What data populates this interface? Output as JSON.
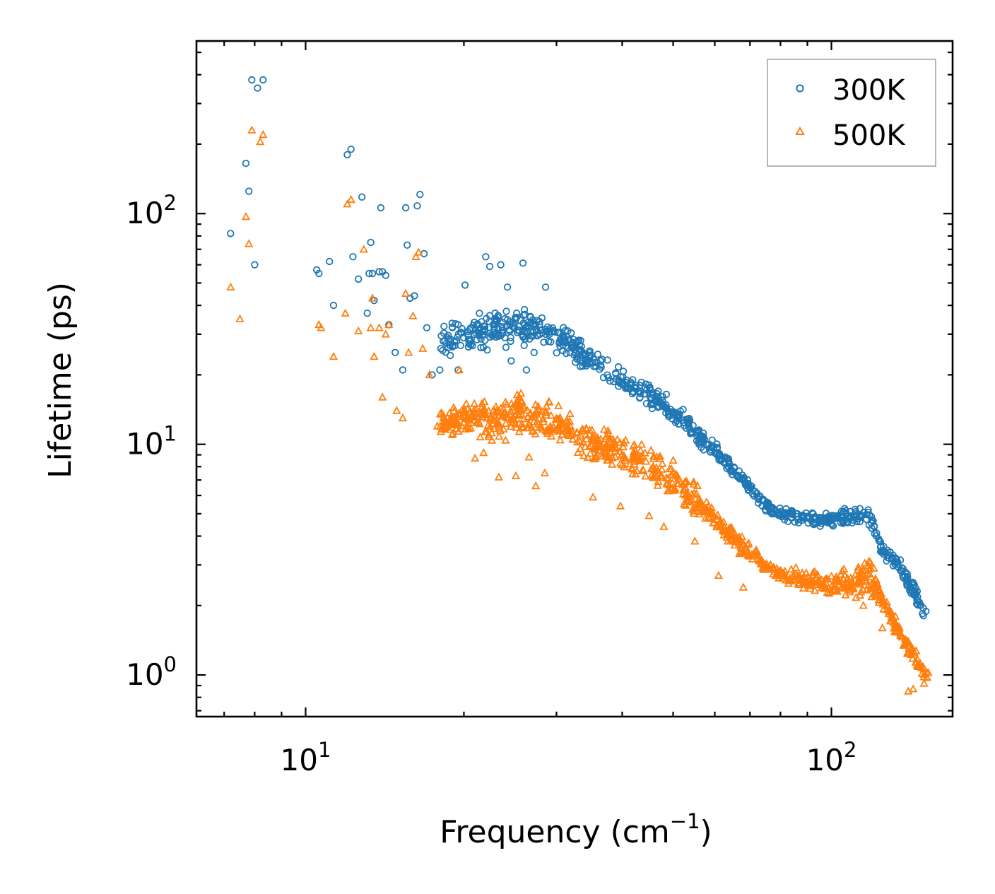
{
  "chart_data": {
    "type": "scatter",
    "xscale": "log",
    "yscale": "log",
    "xlabel": "Frequency (cm",
    "xlabel_sup": "−1",
    "xlabel_close": ")",
    "ylabel": "Lifetime (ps)",
    "xlim": [
      6.2,
      170
    ],
    "ylim": [
      0.66,
      560
    ],
    "x_ticks": [
      {
        "base": "10",
        "exp": "1",
        "value": 10
      },
      {
        "base": "10",
        "exp": "2",
        "value": 100
      }
    ],
    "y_ticks": [
      {
        "base": "10",
        "exp": "0",
        "value": 1
      },
      {
        "base": "10",
        "exp": "1",
        "value": 10
      },
      {
        "base": "10",
        "exp": "2",
        "value": 100
      }
    ],
    "legend_position": "top-right",
    "series": [
      {
        "name": "300K",
        "marker": "circle",
        "color": "#1f77b4",
        "points": [
          [
            7.2,
            82
          ],
          [
            7.7,
            165
          ],
          [
            7.8,
            125
          ],
          [
            7.9,
            380
          ],
          [
            8.0,
            60
          ],
          [
            8.1,
            350
          ],
          [
            8.3,
            380
          ],
          [
            10.5,
            57
          ],
          [
            10.6,
            55
          ],
          [
            11.1,
            62
          ],
          [
            11.3,
            40
          ],
          [
            12.0,
            180
          ],
          [
            12.2,
            190
          ],
          [
            12.3,
            65
          ],
          [
            12.6,
            52
          ],
          [
            12.8,
            118
          ],
          [
            13.1,
            37
          ],
          [
            13.2,
            55
          ],
          [
            13.3,
            75
          ],
          [
            13.4,
            55
          ],
          [
            13.5,
            42
          ],
          [
            13.8,
            56
          ],
          [
            13.9,
            106
          ],
          [
            14.0,
            56
          ],
          [
            14.2,
            54
          ],
          [
            14.4,
            33
          ],
          [
            14.8,
            25
          ],
          [
            15.3,
            21
          ],
          [
            15.5,
            106
          ],
          [
            15.6,
            73
          ],
          [
            15.8,
            43
          ],
          [
            16.1,
            44
          ],
          [
            16.3,
            108
          ],
          [
            16.5,
            121
          ],
          [
            16.8,
            67
          ],
          [
            17.0,
            32
          ],
          [
            17.4,
            20
          ],
          [
            18.0,
            21
          ],
          [
            18.4,
            28
          ],
          [
            19.5,
            21
          ],
          [
            20.1,
            49
          ],
          [
            20.6,
            27
          ],
          [
            22.0,
            65
          ],
          [
            22.4,
            59
          ],
          [
            22.9,
            30
          ],
          [
            23.5,
            60
          ],
          [
            24.2,
            48
          ],
          [
            24.6,
            23
          ],
          [
            25.2,
            37
          ],
          [
            25.9,
            61
          ],
          [
            26.3,
            21
          ],
          [
            27.2,
            25
          ],
          [
            27.9,
            30
          ],
          [
            28.6,
            48
          ],
          [
            29.1,
            30
          ]
        ],
        "bands": [
          [
            18,
            36,
            22
          ],
          [
            22,
            40,
            24
          ],
          [
            26,
            42,
            25
          ],
          [
            30,
            35,
            24
          ],
          [
            35,
            28,
            19
          ],
          [
            40,
            22,
            16
          ],
          [
            45,
            19,
            14
          ],
          [
            50,
            16,
            12
          ],
          [
            55,
            13,
            10
          ],
          [
            60,
            10.5,
            8.5
          ],
          [
            65,
            8.5,
            7
          ],
          [
            70,
            7,
            5.9
          ],
          [
            75,
            6,
            5
          ],
          [
            80,
            5.4,
            4.6
          ],
          [
            90,
            5.2,
            4.4
          ],
          [
            100,
            5.1,
            4.3
          ],
          [
            110,
            5.6,
            4.3
          ],
          [
            118,
            5.6,
            4.3
          ],
          [
            125,
            3.9,
            3.2
          ],
          [
            135,
            3.3,
            2.6
          ],
          [
            145,
            2.5,
            1.9
          ],
          [
            153,
            1.9,
            1.5
          ]
        ],
        "band_count": 780
      },
      {
        "name": "500K",
        "marker": "triangle",
        "color": "#ff7f0e",
        "points": [
          [
            7.2,
            48
          ],
          [
            7.5,
            35
          ],
          [
            7.7,
            97
          ],
          [
            7.8,
            74
          ],
          [
            7.9,
            230
          ],
          [
            8.2,
            205
          ],
          [
            8.3,
            220
          ],
          [
            10.6,
            33
          ],
          [
            10.7,
            32
          ],
          [
            11.3,
            24
          ],
          [
            11.9,
            37
          ],
          [
            12.0,
            110
          ],
          [
            12.2,
            115
          ],
          [
            12.6,
            31
          ],
          [
            12.9,
            70
          ],
          [
            13.3,
            32
          ],
          [
            13.4,
            43
          ],
          [
            13.5,
            24
          ],
          [
            13.8,
            32
          ],
          [
            14.0,
            16
          ],
          [
            14.2,
            30
          ],
          [
            14.4,
            33
          ],
          [
            14.9,
            14
          ],
          [
            15.3,
            13
          ],
          [
            15.5,
            45
          ],
          [
            15.7,
            25
          ],
          [
            16.0,
            36
          ],
          [
            16.2,
            65
          ],
          [
            16.4,
            68
          ],
          [
            16.7,
            26
          ],
          [
            17.2,
            20
          ],
          [
            17.8,
            12
          ],
          [
            18.5,
            12
          ],
          [
            19.0,
            11
          ],
          [
            19.6,
            21
          ],
          [
            20.2,
            15
          ],
          [
            21.0,
            8.7
          ],
          [
            21.8,
            9.2
          ],
          [
            22.6,
            10.4
          ],
          [
            23.3,
            7.2
          ],
          [
            24.0,
            10.4
          ],
          [
            25.1,
            7.3
          ],
          [
            26.6,
            8.8
          ],
          [
            27.4,
            6.6
          ],
          [
            28.5,
            7.5
          ],
          [
            35.2,
            5.9
          ],
          [
            39.7,
            5.4
          ],
          [
            45.0,
            4.9
          ],
          [
            48.0,
            4.4
          ],
          [
            55.0,
            3.8
          ],
          [
            61.0,
            2.7
          ],
          [
            68.0,
            2.4
          ],
          [
            115,
            2.0
          ],
          [
            125,
            1.6
          ],
          [
            140,
            0.85
          ],
          [
            143,
            0.87
          ],
          [
            150,
            0.92
          ]
        ],
        "bands": [
          [
            18,
            15,
            10.5
          ],
          [
            22,
            17,
            10
          ],
          [
            26,
            18,
            10
          ],
          [
            30,
            16,
            9.5
          ],
          [
            35,
            13,
            8
          ],
          [
            40,
            11.5,
            7
          ],
          [
            45,
            10.5,
            6.2
          ],
          [
            50,
            9,
            5.2
          ],
          [
            55,
            7,
            4.6
          ],
          [
            60,
            5.5,
            4.2
          ],
          [
            65,
            4.4,
            3.5
          ],
          [
            70,
            3.8,
            3.0
          ],
          [
            75,
            3.3,
            2.7
          ],
          [
            80,
            3.0,
            2.5
          ],
          [
            90,
            3.0,
            2.2
          ],
          [
            100,
            3.0,
            2.1
          ],
          [
            110,
            3.3,
            2.1
          ],
          [
            118,
            3.5,
            2.1
          ],
          [
            125,
            2.4,
            1.8
          ],
          [
            135,
            1.8,
            1.3
          ],
          [
            145,
            1.3,
            1.0
          ],
          [
            153,
            1.1,
            0.9
          ]
        ],
        "band_count": 900
      }
    ]
  }
}
